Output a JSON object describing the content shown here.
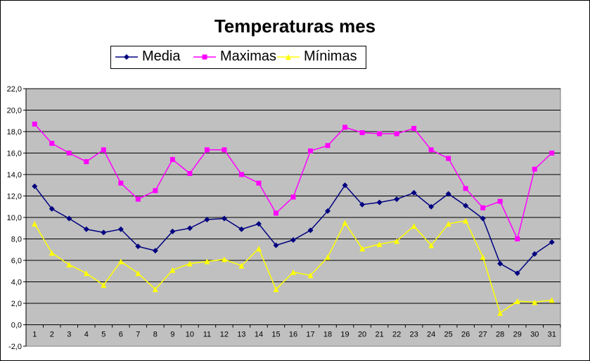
{
  "chart_data": {
    "type": "line",
    "title": "Temperaturas mes",
    "xlabel": "",
    "ylabel": "",
    "categories": [
      "1",
      "2",
      "3",
      "4",
      "5",
      "6",
      "7",
      "8",
      "9",
      "10",
      "11",
      "12",
      "13",
      "14",
      "15",
      "16",
      "17",
      "18",
      "19",
      "20",
      "21",
      "22",
      "23",
      "24",
      "25",
      "26",
      "27",
      "28",
      "29",
      "30",
      "31"
    ],
    "ylim": [
      -2.0,
      22.0
    ],
    "yticks": [
      "-2,0",
      "0,0",
      "2,0",
      "4,0",
      "6,0",
      "8,0",
      "10,0",
      "12,0",
      "14,0",
      "16,0",
      "18,0",
      "20,0",
      "22,0"
    ],
    "grid": true,
    "legend_position": "top",
    "plot_background": "#c0c0c0",
    "series": [
      {
        "name": "Media",
        "color": "#000080",
        "marker": "diamond",
        "values": [
          12.9,
          10.8,
          9.9,
          8.9,
          8.6,
          8.9,
          7.3,
          6.9,
          8.7,
          9.0,
          9.8,
          9.9,
          8.9,
          9.4,
          7.4,
          7.9,
          8.8,
          10.6,
          13.0,
          11.2,
          11.4,
          11.7,
          12.3,
          11.0,
          12.2,
          11.1,
          9.9,
          5.7,
          4.8,
          6.6,
          7.7
        ]
      },
      {
        "name": "Maximas",
        "color": "#ff00ff",
        "marker": "square",
        "values": [
          18.7,
          16.9,
          16.0,
          15.2,
          16.3,
          13.2,
          11.7,
          12.5,
          15.4,
          14.1,
          16.3,
          16.3,
          14.0,
          13.2,
          10.4,
          11.9,
          16.2,
          16.7,
          18.4,
          17.9,
          17.8,
          17.8,
          18.3,
          16.3,
          15.5,
          12.7,
          10.9,
          11.5,
          8.0,
          14.5,
          16.0
        ]
      },
      {
        "name": "Mínimas",
        "color": "#ffff00",
        "marker": "triangle",
        "values": [
          9.4,
          6.7,
          5.6,
          4.8,
          3.7,
          5.9,
          4.8,
          3.3,
          5.1,
          5.7,
          5.9,
          6.1,
          5.5,
          7.1,
          3.3,
          4.9,
          4.6,
          6.3,
          9.5,
          7.1,
          7.5,
          7.8,
          9.2,
          7.4,
          9.4,
          9.7,
          6.3,
          1.1,
          2.2,
          2.1,
          2.3
        ]
      }
    ]
  }
}
